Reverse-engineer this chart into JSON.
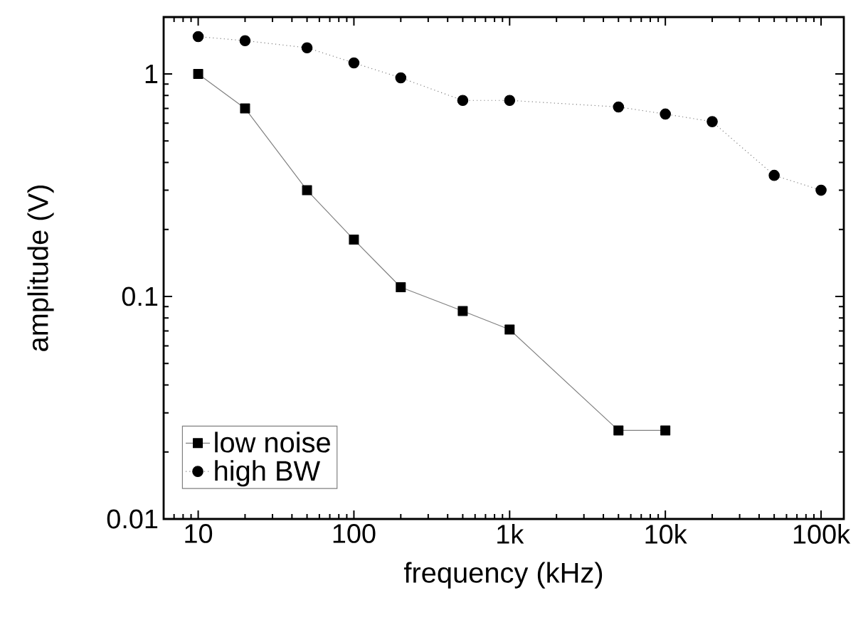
{
  "chart_data": {
    "type": "line",
    "xlabel": "frequency (kHz)",
    "ylabel": "amplitude (V)",
    "log": "xy",
    "grid": false,
    "legend": "bottom left",
    "xlim": [
      6,
      140000
    ],
    "ylim": [
      0.01,
      1.8
    ],
    "xticks": [
      10,
      100,
      {
        "value": 1000,
        "label": "1k"
      },
      {
        "value": 10000,
        "label": "10k"
      },
      {
        "value": 100000,
        "label": "100k"
      }
    ],
    "yticks": [
      0.01,
      0.1,
      1
    ],
    "series": [
      {
        "name": "low noise",
        "color": "#000000",
        "marker": "square",
        "line_style": "solid",
        "x": [
          10,
          20,
          50,
          100,
          200,
          500,
          1000,
          5000,
          10000
        ],
        "values": [
          1.0,
          0.7,
          0.3,
          0.18,
          0.11,
          0.086,
          0.071,
          0.025,
          0.025
        ]
      },
      {
        "name": "high BW",
        "color": "#000000",
        "marker": "circle",
        "line_style": "dotted",
        "x": [
          10,
          20,
          50,
          100,
          200,
          500,
          1000,
          5000,
          10000,
          20000,
          50000,
          100000
        ],
        "values": [
          1.47,
          1.41,
          1.31,
          1.12,
          0.96,
          0.76,
          0.76,
          0.71,
          0.66,
          0.61,
          0.35,
          0.3
        ]
      }
    ]
  }
}
